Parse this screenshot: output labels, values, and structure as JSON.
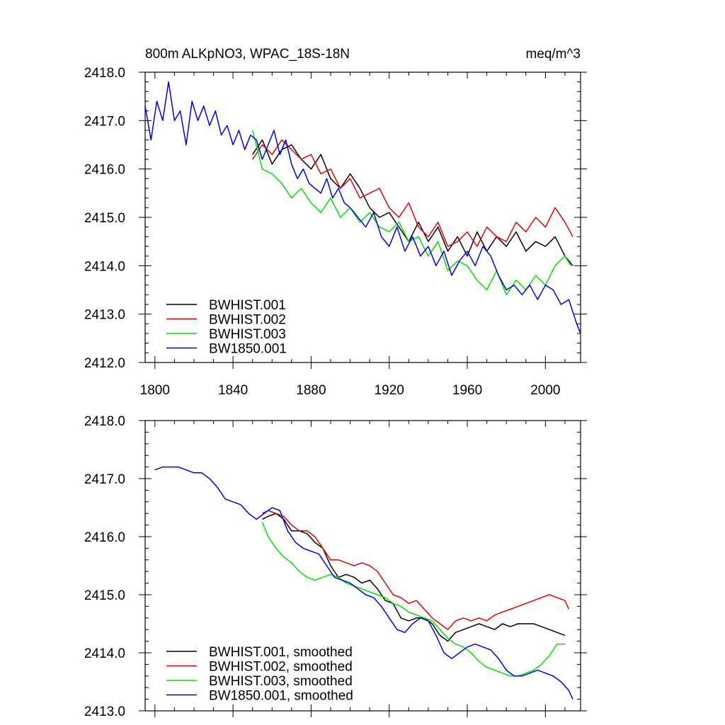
{
  "colors": {
    "BWHIST.001": "#000000",
    "BWHIST.002": "#e00000",
    "BWHIST.003": "#00e000",
    "BW1850.001": "#0000e0"
  },
  "chart_data": [
    {
      "type": "line",
      "title": "800m ALKpNO3, WPAC_18S-18N",
      "units": "meq/m^3",
      "xlim": [
        1795,
        2018
      ],
      "ylim": [
        2412.0,
        2418.0
      ],
      "x_ticks": [
        1800,
        1840,
        1880,
        1920,
        1960,
        2000
      ],
      "x_tick_labels": [
        "1800",
        "1840",
        "1880",
        "1920",
        "1960",
        "2000"
      ],
      "y_ticks": [
        2412.0,
        2413.0,
        2414.0,
        2415.0,
        2416.0,
        2417.0,
        2418.0
      ],
      "y_tick_labels": [
        "2412.0",
        "2413.0",
        "2414.0",
        "2415.0",
        "2416.0",
        "2417.0",
        "2418.0"
      ],
      "legend_position": "bottom-left",
      "series": [
        {
          "name": "BWHIST.001",
          "color_key": "BWHIST.001",
          "x": [
            1850,
            1855,
            1860,
            1865,
            1870,
            1875,
            1880,
            1885,
            1890,
            1895,
            1900,
            1905,
            1910,
            1915,
            1920,
            1925,
            1930,
            1935,
            1940,
            1945,
            1950,
            1955,
            1960,
            1965,
            1970,
            1975,
            1980,
            1985,
            1990,
            1995,
            2000,
            2005,
            2010,
            2014
          ],
          "y": [
            2416.3,
            2416.6,
            2416.1,
            2416.4,
            2416.5,
            2416.2,
            2416.0,
            2416.3,
            2415.8,
            2415.6,
            2415.9,
            2415.6,
            2415.2,
            2415.0,
            2415.1,
            2414.8,
            2414.5,
            2414.9,
            2414.5,
            2414.8,
            2414.3,
            2414.6,
            2414.2,
            2414.7,
            2414.3,
            2414.6,
            2414.4,
            2414.7,
            2414.3,
            2414.5,
            2414.4,
            2414.6,
            2414.2,
            2414.0
          ]
        },
        {
          "name": "BWHIST.002",
          "color_key": "BWHIST.002",
          "x": [
            1850,
            1855,
            1860,
            1865,
            1870,
            1875,
            1880,
            1885,
            1890,
            1895,
            1900,
            1905,
            1910,
            1915,
            1920,
            1925,
            1930,
            1935,
            1940,
            1945,
            1950,
            1955,
            1960,
            1965,
            1970,
            1975,
            1980,
            1985,
            1990,
            1995,
            2000,
            2005,
            2010,
            2014
          ],
          "y": [
            2416.2,
            2416.5,
            2416.3,
            2416.6,
            2416.4,
            2416.2,
            2416.3,
            2415.9,
            2416.0,
            2415.6,
            2415.8,
            2415.4,
            2415.5,
            2415.6,
            2415.2,
            2415.0,
            2415.3,
            2414.8,
            2414.6,
            2414.9,
            2414.4,
            2414.5,
            2414.7,
            2414.4,
            2414.8,
            2414.6,
            2414.5,
            2414.9,
            2414.7,
            2415.0,
            2414.8,
            2415.2,
            2414.9,
            2414.6
          ]
        },
        {
          "name": "BWHIST.003",
          "color_key": "BWHIST.003",
          "x": [
            1850,
            1855,
            1860,
            1865,
            1870,
            1875,
            1880,
            1885,
            1890,
            1895,
            1900,
            1905,
            1910,
            1915,
            1920,
            1925,
            1930,
            1935,
            1940,
            1945,
            1950,
            1955,
            1960,
            1965,
            1970,
            1975,
            1980,
            1985,
            1990,
            1995,
            2000,
            2005,
            2010,
            2013
          ],
          "y": [
            2416.8,
            2416.0,
            2415.9,
            2415.7,
            2415.4,
            2415.6,
            2415.3,
            2415.1,
            2415.4,
            2415.0,
            2415.2,
            2414.9,
            2415.1,
            2414.8,
            2414.7,
            2414.9,
            2414.5,
            2414.6,
            2414.2,
            2414.5,
            2413.9,
            2414.1,
            2414.0,
            2413.7,
            2413.5,
            2413.9,
            2413.4,
            2413.7,
            2413.5,
            2413.8,
            2413.6,
            2414.0,
            2414.2,
            2414.0
          ]
        },
        {
          "name": "BW1850.001",
          "color_key": "BW1850.001",
          "x": [
            1795,
            1798,
            1801,
            1804,
            1807,
            1810,
            1813,
            1816,
            1819,
            1822,
            1825,
            1828,
            1831,
            1834,
            1837,
            1840,
            1843,
            1846,
            1849,
            1852,
            1855,
            1858,
            1861,
            1864,
            1867,
            1870,
            1873,
            1876,
            1879,
            1882,
            1885,
            1888,
            1891,
            1894,
            1897,
            1900,
            1904,
            1908,
            1912,
            1916,
            1920,
            1924,
            1928,
            1932,
            1936,
            1940,
            1944,
            1948,
            1952,
            1956,
            1960,
            1964,
            1968,
            1972,
            1976,
            1980,
            1984,
            1988,
            1992,
            1996,
            2000,
            2004,
            2008,
            2012,
            2016,
            2018
          ],
          "y": [
            2417.3,
            2416.6,
            2417.4,
            2417.0,
            2417.8,
            2417.0,
            2417.2,
            2416.5,
            2417.4,
            2417.0,
            2417.3,
            2416.9,
            2417.2,
            2416.7,
            2416.9,
            2416.5,
            2416.8,
            2416.4,
            2416.7,
            2416.6,
            2416.2,
            2416.5,
            2416.8,
            2416.3,
            2416.6,
            2416.1,
            2415.8,
            2416.0,
            2415.7,
            2415.6,
            2415.5,
            2415.8,
            2415.4,
            2415.6,
            2415.3,
            2415.2,
            2415.0,
            2414.8,
            2415.1,
            2414.6,
            2414.4,
            2414.8,
            2414.3,
            2414.6,
            2414.2,
            2414.4,
            2414.0,
            2414.3,
            2413.8,
            2414.1,
            2414.3,
            2414.0,
            2414.4,
            2414.2,
            2413.8,
            2413.5,
            2413.6,
            2413.4,
            2413.6,
            2413.3,
            2413.6,
            2413.5,
            2413.2,
            2413.3,
            2412.8,
            2412.6
          ]
        }
      ]
    },
    {
      "type": "line",
      "title": "",
      "xlim": [
        1795,
        2018
      ],
      "ylim": [
        2413.0,
        2418.0
      ],
      "x_ticks": [
        1800,
        1840,
        1880,
        1920,
        1960,
        2000
      ],
      "y_ticks": [
        2413.0,
        2414.0,
        2415.0,
        2416.0,
        2417.0,
        2418.0
      ],
      "y_tick_labels": [
        "2413.0",
        "2414.0",
        "2415.0",
        "2416.0",
        "2417.0",
        "2418.0"
      ],
      "legend_position": "bottom-left",
      "series": [
        {
          "name": "BWHIST.001, smoothed",
          "color_key": "BWHIST.001",
          "x": [
            1855,
            1858,
            1862,
            1866,
            1870,
            1874,
            1878,
            1882,
            1886,
            1890,
            1894,
            1898,
            1902,
            1906,
            1910,
            1914,
            1918,
            1922,
            1926,
            1930,
            1934,
            1938,
            1942,
            1946,
            1950,
            1954,
            1958,
            1962,
            1966,
            1970,
            1974,
            1978,
            1982,
            1986,
            1990,
            1994,
            1998,
            2002,
            2006,
            2010
          ],
          "y": [
            2416.3,
            2416.35,
            2416.4,
            2416.3,
            2416.1,
            2416.1,
            2416.05,
            2415.9,
            2415.8,
            2415.5,
            2415.3,
            2415.35,
            2415.3,
            2415.2,
            2415.25,
            2415.1,
            2414.9,
            2414.85,
            2414.6,
            2414.55,
            2414.6,
            2414.6,
            2414.5,
            2414.3,
            2414.2,
            2414.35,
            2414.4,
            2414.45,
            2414.5,
            2414.45,
            2414.4,
            2414.5,
            2414.45,
            2414.5,
            2414.5,
            2414.5,
            2414.45,
            2414.4,
            2414.35,
            2414.3
          ]
        },
        {
          "name": "BWHIST.002, smoothed",
          "color_key": "BWHIST.002",
          "x": [
            1855,
            1858,
            1862,
            1866,
            1870,
            1874,
            1878,
            1882,
            1886,
            1890,
            1894,
            1898,
            1902,
            1906,
            1910,
            1914,
            1918,
            1922,
            1926,
            1930,
            1934,
            1938,
            1942,
            1946,
            1950,
            1954,
            1958,
            1962,
            1966,
            1970,
            1974,
            1978,
            1982,
            1986,
            1990,
            1994,
            1998,
            2002,
            2006,
            2010,
            2012
          ],
          "y": [
            2416.4,
            2416.45,
            2416.4,
            2416.35,
            2416.2,
            2416.1,
            2416.1,
            2416.0,
            2415.8,
            2415.6,
            2415.6,
            2415.55,
            2415.5,
            2415.55,
            2415.5,
            2415.4,
            2415.2,
            2415.0,
            2414.95,
            2414.85,
            2414.9,
            2414.75,
            2414.6,
            2414.5,
            2414.4,
            2414.55,
            2414.6,
            2414.55,
            2414.6,
            2414.55,
            2414.65,
            2414.7,
            2414.75,
            2414.8,
            2414.85,
            2414.9,
            2414.95,
            2415.0,
            2414.95,
            2414.9,
            2414.75
          ]
        },
        {
          "name": "BWHIST.003, smoothed",
          "color_key": "BWHIST.003",
          "x": [
            1855,
            1858,
            1862,
            1866,
            1870,
            1874,
            1878,
            1882,
            1886,
            1890,
            1894,
            1898,
            1902,
            1906,
            1910,
            1914,
            1918,
            1922,
            1926,
            1930,
            1934,
            1938,
            1942,
            1946,
            1950,
            1954,
            1958,
            1962,
            1966,
            1970,
            1974,
            1978,
            1982,
            1986,
            1990,
            1994,
            1998,
            2002,
            2006,
            2010
          ],
          "y": [
            2416.25,
            2416.0,
            2415.8,
            2415.65,
            2415.55,
            2415.4,
            2415.3,
            2415.25,
            2415.3,
            2415.35,
            2415.3,
            2415.2,
            2415.15,
            2415.1,
            2415.05,
            2415.0,
            2414.95,
            2414.85,
            2414.8,
            2414.7,
            2414.65,
            2414.6,
            2414.55,
            2414.4,
            2414.25,
            2414.15,
            2414.1,
            2414.0,
            2413.85,
            2413.75,
            2413.7,
            2413.65,
            2413.6,
            2413.6,
            2413.65,
            2413.7,
            2413.8,
            2413.95,
            2414.15,
            2414.15
          ]
        },
        {
          "name": "BW1850.001, smoothed",
          "color_key": "BW1850.001",
          "x": [
            1800,
            1804,
            1808,
            1812,
            1816,
            1820,
            1824,
            1828,
            1832,
            1836,
            1840,
            1844,
            1848,
            1852,
            1856,
            1860,
            1864,
            1868,
            1872,
            1876,
            1880,
            1884,
            1888,
            1892,
            1896,
            1900,
            1904,
            1908,
            1912,
            1916,
            1920,
            1924,
            1928,
            1932,
            1936,
            1940,
            1944,
            1948,
            1952,
            1956,
            1960,
            1964,
            1968,
            1972,
            1976,
            1980,
            1984,
            1988,
            1992,
            1996,
            2000,
            2004,
            2008,
            2012,
            2014
          ],
          "y": [
            2417.15,
            2417.2,
            2417.2,
            2417.2,
            2417.15,
            2417.1,
            2417.1,
            2417.0,
            2416.85,
            2416.65,
            2416.6,
            2416.55,
            2416.4,
            2416.3,
            2416.4,
            2416.5,
            2416.45,
            2416.1,
            2415.9,
            2415.8,
            2415.75,
            2415.7,
            2415.5,
            2415.3,
            2415.25,
            2415.2,
            2415.1,
            2415.0,
            2414.95,
            2414.8,
            2414.6,
            2414.4,
            2414.35,
            2414.5,
            2414.6,
            2414.55,
            2414.3,
            2414.0,
            2413.9,
            2414.0,
            2414.1,
            2414.15,
            2414.1,
            2414.05,
            2413.9,
            2413.7,
            2413.6,
            2413.6,
            2413.65,
            2413.7,
            2413.65,
            2413.6,
            2413.5,
            2413.35,
            2413.2
          ]
        }
      ]
    }
  ]
}
